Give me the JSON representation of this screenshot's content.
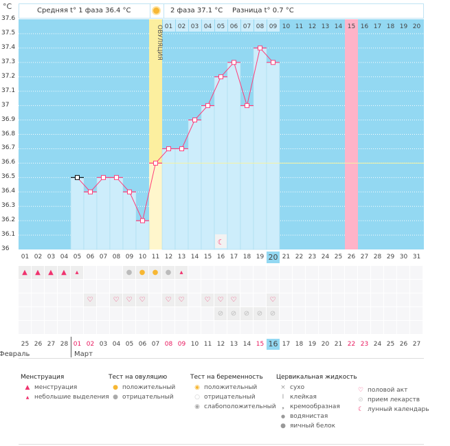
{
  "header": {
    "unit": "°C",
    "phase1": "Средняя t° 1 фаза 36.4 °C",
    "phase2": "2 фаза 37.1 °C",
    "diff": "Разница t° 0.7 °C",
    "ovulation_label": "ОВУЛЯЦИЯ"
  },
  "colors": {
    "background": "#93d8f2",
    "bar": "#cdedfb",
    "line": "#ff3c78",
    "ovulation": "#fcef9f",
    "highlight": "#ffb3c8",
    "weekend": "#e8175d"
  },
  "chart_data": {
    "type": "line",
    "ylabel": "°C",
    "ylim": [
      36,
      37.6
    ],
    "yticks": [
      "36",
      "36.1",
      "36.2",
      "36.3",
      "36.4",
      "36.5",
      "36.6",
      "36.7",
      "36.8",
      "36.9",
      "37",
      "37.1",
      "37.2",
      "37.3",
      "37.4",
      "37.5",
      "37.6"
    ],
    "x": [
      "01",
      "02",
      "03",
      "04",
      "05",
      "06",
      "07",
      "08",
      "09",
      "10",
      "11",
      "12",
      "13",
      "14",
      "15",
      "16",
      "17",
      "18",
      "19",
      "20",
      "21",
      "22",
      "23",
      "24",
      "25",
      "26",
      "27",
      "28",
      "29",
      "30",
      "31"
    ],
    "values": [
      null,
      null,
      null,
      null,
      36.5,
      36.4,
      36.5,
      36.5,
      36.4,
      36.2,
      36.6,
      36.7,
      36.7,
      36.9,
      37.0,
      37.2,
      37.3,
      37.0,
      37.4,
      37.3,
      null,
      null,
      null,
      null,
      null,
      null,
      null,
      null,
      null,
      null,
      null
    ],
    "coverline": 36.6,
    "ovulation_day": 11,
    "highlight_day": 26,
    "current_day": 20,
    "phase2_days": [
      "01",
      "02",
      "03",
      "04",
      "05",
      "06",
      "07",
      "08",
      "09",
      "10",
      "11",
      "12",
      "13",
      "14",
      "15",
      "16",
      "17",
      "18",
      "19",
      "20"
    ],
    "moon_day": 16
  },
  "rows": {
    "row1": {
      "5": "small",
      "1": "big",
      "2": "big",
      "3": "big",
      "4": "big",
      "9": "ov-neg",
      "10": "ov-pos",
      "11": "ov-pos",
      "12": "ov-neg",
      "13": "small"
    },
    "hearts": [
      6,
      8,
      9,
      10,
      12,
      13,
      15,
      16,
      17,
      20
    ],
    "pills": [
      16,
      17,
      18,
      19,
      20
    ]
  },
  "dates": [
    "25",
    "26",
    "27",
    "28",
    "01",
    "02",
    "03",
    "04",
    "05",
    "06",
    "07",
    "08",
    "09",
    "10",
    "11",
    "12",
    "13",
    "14",
    "15",
    "16",
    "17",
    "18",
    "19",
    "20",
    "21",
    "22",
    "23",
    "24",
    "25",
    "26",
    "27"
  ],
  "red_dates": [
    5,
    6,
    12,
    13,
    19,
    26,
    27
  ],
  "current_date_index": 20,
  "months": {
    "prev": "Февраль",
    "cur": "Март"
  },
  "legend": {
    "mens": {
      "title": "Менструация",
      "items": [
        "менструация",
        "небольшие выделения"
      ]
    },
    "ov": {
      "title": "Тест на овуляцию",
      "items": [
        "положительный",
        "отрицательный"
      ]
    },
    "preg": {
      "title": "Тест на беременность",
      "items": [
        "положительный",
        "отрицательный",
        "слабоположительный"
      ]
    },
    "cerv": {
      "title": "Цервикальная жидкость",
      "items": [
        "сухо",
        "клейкая",
        "кремообразная",
        "водянистая",
        "яичный белок"
      ]
    },
    "other": {
      "items": [
        "половой акт",
        "прием лекарств",
        "лунный календарь"
      ]
    }
  }
}
